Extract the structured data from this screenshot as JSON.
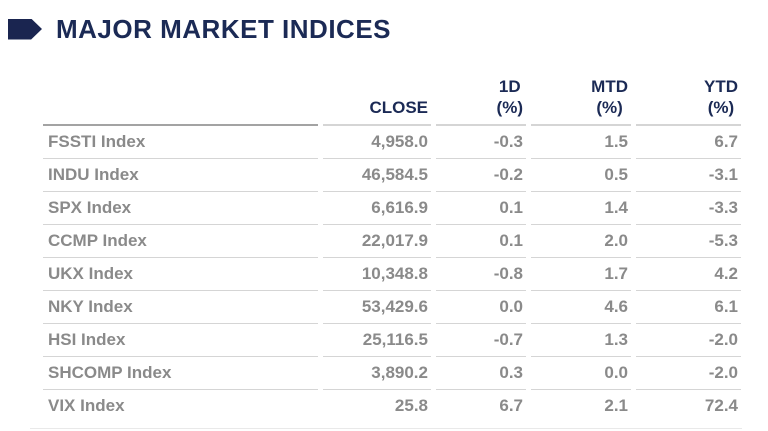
{
  "page": {
    "title": "MAJOR MARKET INDICES"
  },
  "colors": {
    "accent_navy": "#1b2a55",
    "arrow_navy": "#1a2550",
    "text_gray": "#8a8a8a",
    "divider_light": "#d5d5d5",
    "divider_medium": "#a3a3a3"
  },
  "icons": {
    "bullet": "right-arrow-tag-icon"
  },
  "table": {
    "headers": {
      "label": "",
      "close": "CLOSE",
      "d1_line1": "1D",
      "d1_line2": "(%)",
      "mtd_line1": "MTD",
      "mtd_line2": "(%)",
      "ytd_line1": "YTD",
      "ytd_line2": "(%)"
    },
    "rows": [
      {
        "label": "FSSTI Index",
        "close": "4,958.0",
        "d1": "-0.3",
        "mtd": "1.5",
        "ytd": "6.7"
      },
      {
        "label": "INDU Index",
        "close": "46,584.5",
        "d1": "-0.2",
        "mtd": "0.5",
        "ytd": "-3.1"
      },
      {
        "label": "SPX Index",
        "close": "6,616.9",
        "d1": "0.1",
        "mtd": "1.4",
        "ytd": "-3.3"
      },
      {
        "label": "CCMP Index",
        "close": "22,017.9",
        "d1": "0.1",
        "mtd": "2.0",
        "ytd": "-5.3"
      },
      {
        "label": "UKX Index",
        "close": "10,348.8",
        "d1": "-0.8",
        "mtd": "1.7",
        "ytd": "4.2"
      },
      {
        "label": "NKY Index",
        "close": "53,429.6",
        "d1": "0.0",
        "mtd": "4.6",
        "ytd": "6.1"
      },
      {
        "label": "HSI Index",
        "close": "25,116.5",
        "d1": "-0.7",
        "mtd": "1.3",
        "ytd": "-2.0"
      },
      {
        "label": "SHCOMP Index",
        "close": "3,890.2",
        "d1": "0.3",
        "mtd": "0.0",
        "ytd": "-2.0"
      },
      {
        "label": "VIX Index",
        "close": "25.8",
        "d1": "6.7",
        "mtd": "2.1",
        "ytd": "72.4"
      }
    ]
  }
}
